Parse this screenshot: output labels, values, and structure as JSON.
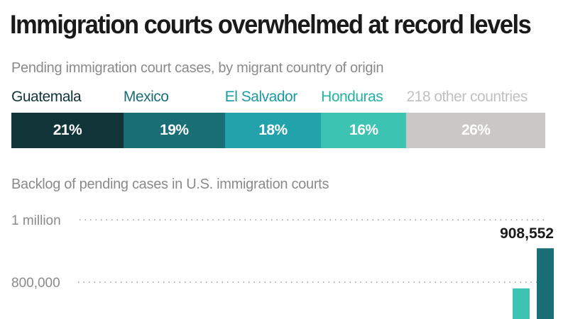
{
  "title": "Immigration courts overwhelmed at record levels",
  "chart_data": [
    {
      "type": "bar",
      "orientation": "horizontal-stacked",
      "subtitle": "Pending immigration court cases, by migrant country of origin",
      "categories": [
        "Guatemala",
        "Mexico",
        "El Salvador",
        "Honduras",
        "218 other countries"
      ],
      "values": [
        21,
        19,
        18,
        16,
        26
      ],
      "value_labels": [
        "21%",
        "19%",
        "18%",
        "16%",
        "26%"
      ],
      "colors": [
        "#113438",
        "#1a6f76",
        "#22a3ab",
        "#3dc3b2",
        "#c9c8c5"
      ],
      "label_colors": [
        "#113438",
        "#1a6f76",
        "#1c9aa2",
        "#22b3a1",
        "#c0c0c0"
      ],
      "unit": "%"
    },
    {
      "type": "bar",
      "subtitle": "Backlog of pending cases in U.S. immigration courts",
      "y_ticks": [
        {
          "value": 1000000,
          "label": "1 million"
        },
        {
          "value": 800000,
          "label": "800,000"
        }
      ],
      "bars": [
        {
          "value": 780000,
          "color": "#3dc3b2"
        },
        {
          "value": 908552,
          "color": "#1a6f76"
        }
      ],
      "annotation": {
        "value": 908552,
        "label": "908,552"
      }
    }
  ]
}
